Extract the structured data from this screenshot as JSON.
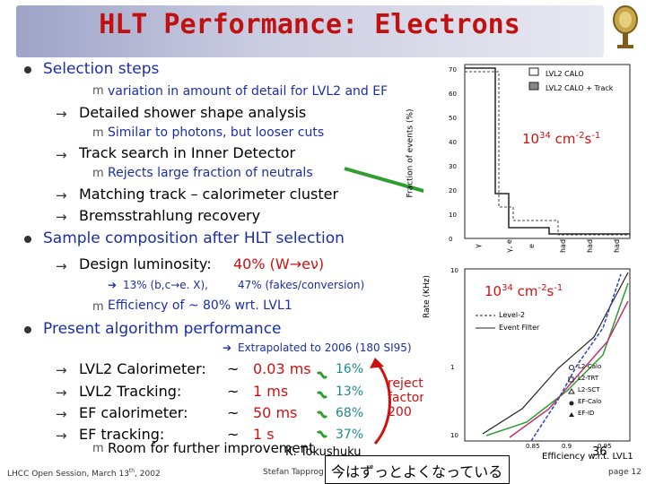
{
  "title": "HLT Performance: Electrons",
  "bullets": {
    "selection_steps": "Selection steps",
    "variation": "variation in amount of detail for LVL2 and EF",
    "shower": "Detailed shower shape analysis",
    "similar": "Similar to photons, but looser cuts",
    "track_search": "Track search in Inner Detector",
    "rejects": "Rejects large fraction of neutrals",
    "matching": "Matching track – calorimeter cluster",
    "brems": "Bremsstrahlung recovery",
    "sample": "Sample composition after HLT selection",
    "design_lum": "Design luminosity:",
    "design_pct": "40% (W",
    "design_sym": "eν)",
    "frac1": "13% (b,c",
    "frac1b": "e. X),",
    "frac2": "47% (fakes/conversion)",
    "efficiency": "Efficiency of ~ 80% wrt. LVL1",
    "present": "Present algorithm performance",
    "extrap": "Extrapolated to 2006 (180 SI95)",
    "rows": [
      {
        "label": "LVL2 Calorimeter:",
        "tilde": "~",
        "time": "0.03 ms",
        "pct": "16%"
      },
      {
        "label": "LVL2 Tracking:",
        "tilde": "~",
        "time": "1 ms",
        "pct": "13%"
      },
      {
        "label": "EF calorimeter:",
        "tilde": "~",
        "time": "50 ms",
        "pct": "68%"
      },
      {
        "label": "EF tracking:",
        "tilde": "~",
        "time": "1 s",
        "pct": "37%"
      }
    ],
    "room": "Room for further improvement",
    "rejection": "rejection factor of 200"
  },
  "plot1": {
    "ylabel": "Fraction of events (%)",
    "legend": [
      "LVL2 CALO",
      "LVL2 CALO + Track"
    ],
    "lumi": "10",
    "lumi_exp": "34",
    "lumi_unit": "cm",
    "lumi_exp2": "-2",
    "lumi_s": "s",
    "lumi_exp3": "-1",
    "yticks": [
      "70",
      "60",
      "50",
      "40",
      "30",
      "20",
      "10",
      "0"
    ],
    "xcats": [
      "γ",
      "γ, e",
      "e",
      "had",
      "had",
      "had"
    ]
  },
  "plot2": {
    "ylabel": "Rate (KHz)",
    "xlabel": "Efficiency w.r.t. LVL1",
    "lumi": "10",
    "lumi_exp": "34",
    "lumi_unit": "cm",
    "lumi_exp2": "-2",
    "lumi_s": "s",
    "lumi_exp3": "-1",
    "legend_lines": [
      "Level-2",
      "Event Filter"
    ],
    "legend_markers": [
      "L2-Calo",
      "L2-TRT",
      "L2-SCT",
      "EF-Calo",
      "EF-ID"
    ],
    "yticks": [
      "10",
      "1",
      "10"
    ],
    "xticks": [
      "0.85",
      "0.9",
      "0.95"
    ]
  },
  "footer": {
    "left": "LHCC Open Session, March 13",
    "left_sup": "th",
    "left_year": ", 2002",
    "center": "Stefan Tapprog",
    "right": "page 12",
    "author": "K. Tokushuku",
    "pageno": "36"
  },
  "note": "今はずっとよくなっている",
  "colors": {
    "title": "#cc1111",
    "blue": "#1a2fa8",
    "red": "#cc1111",
    "green_arrow": "#2e9f2e",
    "teal": "#1f8a8a"
  }
}
